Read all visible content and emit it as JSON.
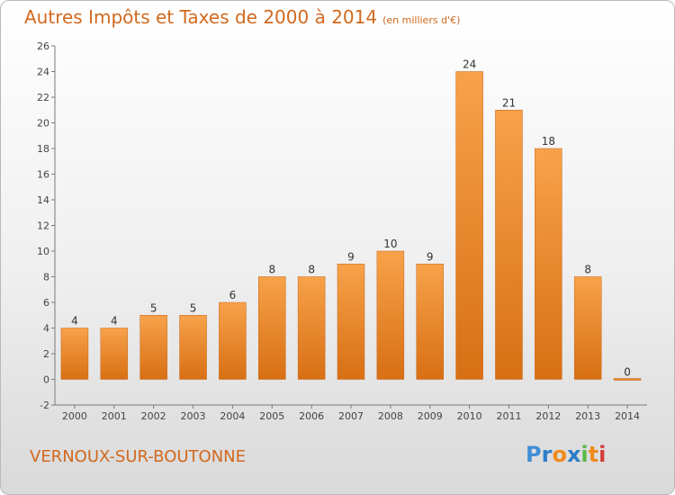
{
  "title": "Autres Impôts et Taxes de 2000 à 2014",
  "unit": "(en milliers d'€)",
  "location": "VERNOUX-SUR-BOUTONNE",
  "logo": "Proxiti",
  "colors": {
    "bar": "#f0922f",
    "title": "#d2691e",
    "axis": "#7a7a7a"
  },
  "chart_data": {
    "type": "bar",
    "title": "Autres Impôts et Taxes de 2000 à 2014",
    "subtitle": "(en milliers d'€)",
    "xlabel": "",
    "ylabel": "",
    "categories": [
      "2000",
      "2001",
      "2002",
      "2003",
      "2004",
      "2005",
      "2006",
      "2007",
      "2008",
      "2009",
      "2010",
      "2011",
      "2012",
      "2013",
      "2014"
    ],
    "values": [
      4,
      4,
      5,
      5,
      6,
      8,
      8,
      9,
      10,
      9,
      24,
      21,
      18,
      8,
      0
    ],
    "ylim": [
      -2,
      26
    ],
    "yticks": [
      -2,
      0,
      2,
      4,
      6,
      8,
      10,
      12,
      14,
      16,
      18,
      20,
      22,
      24,
      26
    ],
    "grid": false,
    "legend": "none",
    "data_labels": true
  }
}
